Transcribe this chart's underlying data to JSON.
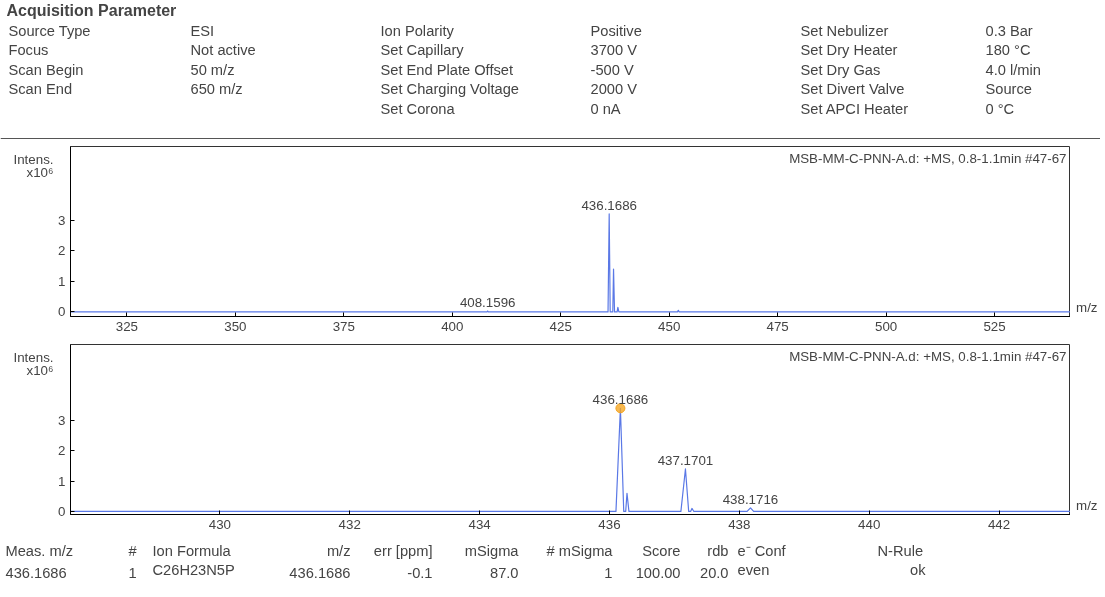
{
  "chart_data": [
    {
      "type": "other",
      "title": "Acquisition Parameter",
      "annotations": [
        "Source Type",
        "Focus",
        "Scan Begin",
        "Scan End",
        "ESI",
        "Not active",
        "50 m/z",
        "650 m/z",
        "Ion Polarity",
        "Set Capillary",
        "Set End Plate Offset",
        "Set Charging Voltage",
        "Set Corona",
        "Positive",
        "3700 V",
        "-500 V",
        "2000 V",
        "0 nA",
        "Set Nebulizer",
        "Set Dry Heater",
        "Set Dry Gas",
        "Set Divert Valve",
        "Set APCI Heater",
        "0.3 Bar",
        "180 °C",
        "4.0 l/min",
        "Source",
        "0 °C"
      ]
    },
    {
      "type": "line",
      "subtitle": "MSB-MM-C-PNN-A.d: +MS, 0.8-1.1min #47-67",
      "ylabel": "Intens. x10⁶",
      "xlabel": "m/z",
      "xlim": [
        312,
        542.5
      ],
      "xticks": [
        325,
        350,
        375,
        400,
        425,
        450,
        475,
        500,
        525
      ],
      "ylim": [
        -0.15,
        5.4
      ],
      "yticks": [
        0,
        1,
        2,
        3
      ],
      "grid": false,
      "series": [
        {
          "color": "#5a78e6",
          "x": [
            312,
            408.0,
            408.1596,
            408.3,
            435.9,
            436.1686,
            436.4,
            437.0,
            437.17,
            437.4,
            438.0,
            438.17,
            438.4,
            451.9,
            452.1,
            452.3,
            542.5
          ],
          "values": [
            0,
            0,
            0.03,
            0,
            0,
            3.2,
            0,
            0,
            1.4,
            0,
            0,
            0.15,
            0,
            0,
            0.05,
            0,
            0
          ]
        }
      ],
      "annotations": [
        {
          "text": "436.1686",
          "x": 436.1686,
          "y": 3.2
        },
        {
          "text": "408.1596",
          "x": 408.1596,
          "y": 0.03
        }
      ]
    },
    {
      "type": "line",
      "subtitle": "MSB-MM-C-PNN-A.d: +MS, 0.8-1.1min #47-67",
      "ylabel": "Intens. x10⁶",
      "xlabel": "m/z",
      "xlim": [
        427.7,
        443.1
      ],
      "xticks": [
        430,
        432,
        434,
        436,
        438,
        440,
        442
      ],
      "ylim": [
        -0.1,
        5.5
      ],
      "yticks": [
        0,
        1,
        2,
        3
      ],
      "grid": false,
      "series": [
        {
          "color": "#5a78e6",
          "x": [
            427.7,
            436.1,
            436.1686,
            436.22,
            436.25,
            436.27,
            436.3,
            437.1,
            437.1701,
            437.22,
            437.25,
            437.27,
            437.3,
            438.12,
            438.1716,
            438.22,
            443.1
          ],
          "values": [
            0,
            0,
            3.4,
            0,
            0,
            0.6,
            0,
            0,
            1.4,
            0,
            0,
            0.1,
            0,
            0,
            0.12,
            0,
            0
          ]
        },
        {
          "type": "scatter",
          "color": "#f5a623",
          "x": [
            436.1686
          ],
          "values": [
            3.4
          ]
        }
      ],
      "annotations": [
        {
          "text": "436.1686",
          "x": 436.1686,
          "y": 3.4
        },
        {
          "text": "437.1701",
          "x": 437.1701,
          "y": 1.4
        },
        {
          "text": "438.1716",
          "x": 438.1716,
          "y": 0.12
        }
      ]
    },
    {
      "type": "other",
      "annotations": [
        "Meas. m/z",
        "#",
        "Ion Formula",
        "m/z",
        "err [ppm]",
        "mSigma",
        "# mSigma",
        "Score",
        "rdb",
        "e⁻ Conf",
        "N-Rule",
        "436.1686",
        "1",
        "C26H23N5P",
        "436.1686",
        "-0.1",
        "87.0",
        "1",
        "100.00",
        "20.0",
        "even",
        "ok"
      ]
    }
  ]
}
